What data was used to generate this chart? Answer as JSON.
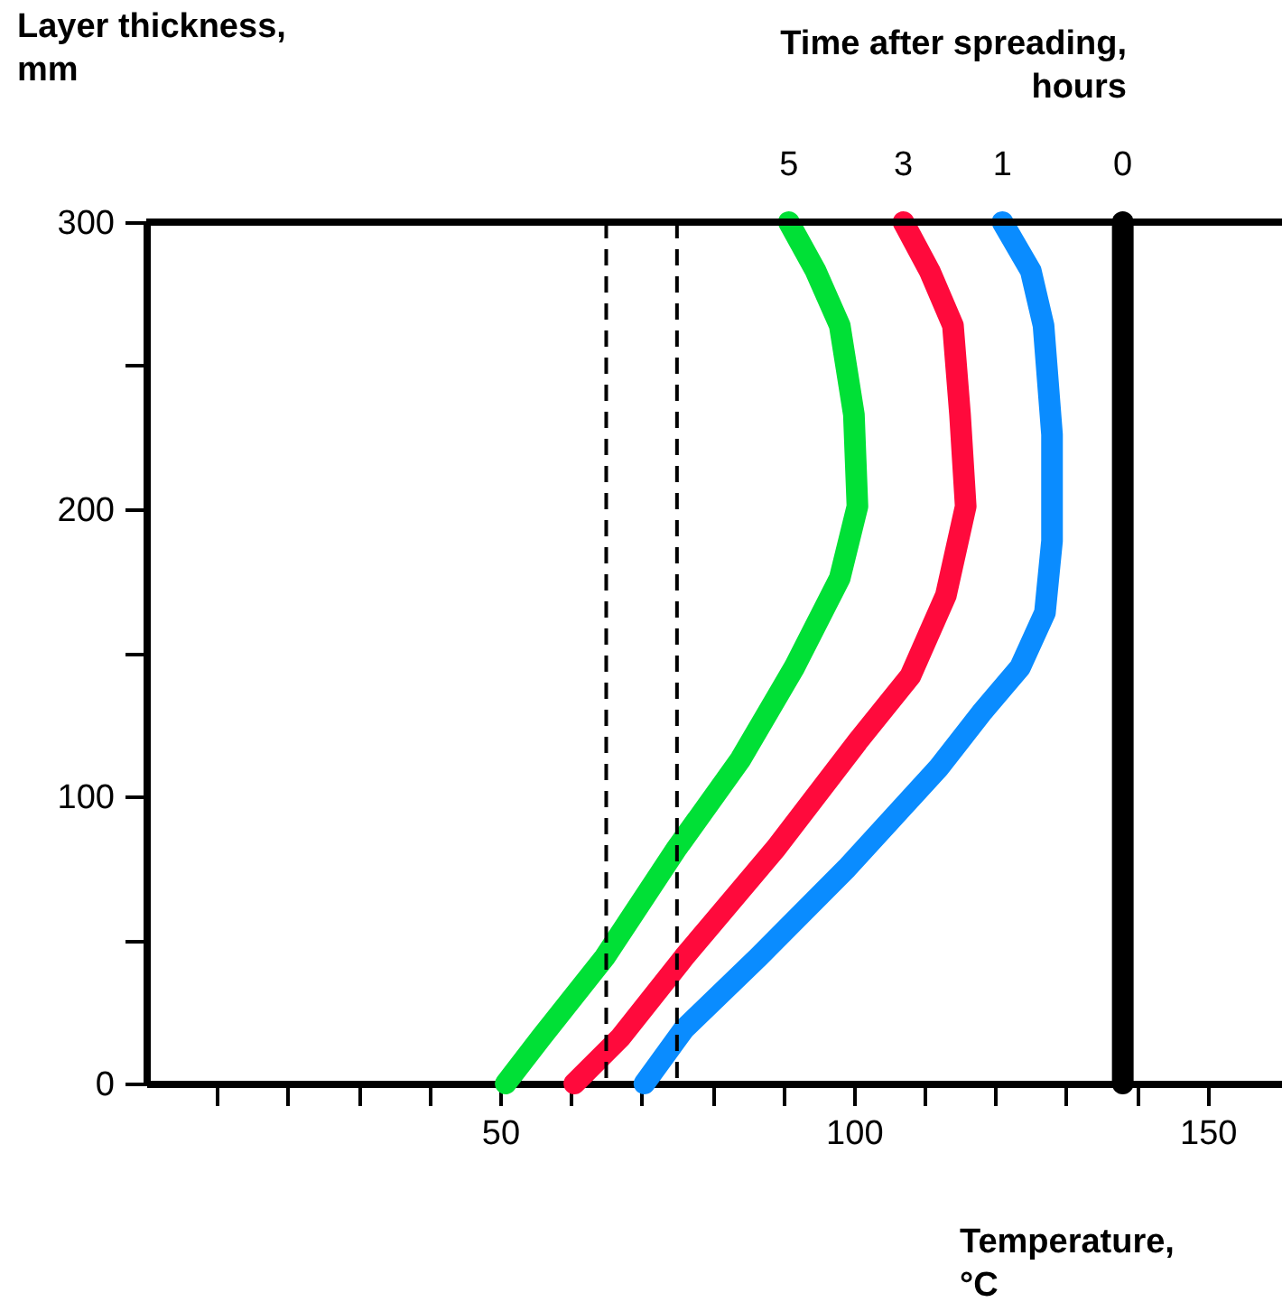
{
  "chart_data": {
    "type": "line",
    "ylabel": "Layer thickness, mm",
    "xlabel": "Temperature, °C",
    "legend_title": "Time after spreading, hours",
    "series": [
      {
        "name": "5",
        "color": "#00e036",
        "x": [
          50.8,
          55.8,
          64.8,
          75,
          84,
          91.6,
          98,
          100.5,
          100,
          98,
          94.6,
          90.8
        ],
        "values": [
          0,
          16,
          44,
          82,
          113,
          145,
          176,
          201,
          233,
          264,
          283,
          300
        ]
      },
      {
        "name": "3",
        "color": "#ff0a3c",
        "x": [
          60.5,
          67,
          76,
          89,
          100.5,
          108,
          113,
          115.8,
          115,
          114,
          110.7,
          107
        ],
        "values": [
          0,
          16,
          44,
          82,
          119,
          142,
          170,
          201,
          233,
          264,
          283,
          300
        ]
      },
      {
        "name": "1",
        "color": "#0a8cff",
        "x": [
          70.4,
          76,
          86.5,
          99,
          112,
          118,
          123.5,
          127,
          128,
          128,
          126.8,
          125,
          121
        ],
        "values": [
          0,
          19,
          44,
          75,
          110,
          129,
          145,
          164,
          189,
          226,
          264,
          283,
          300
        ]
      },
      {
        "name": "0",
        "color": "#000000",
        "x": [
          138,
          138
        ],
        "values": [
          0,
          300
        ]
      }
    ],
    "xlim": [
      0,
      160.5
    ],
    "xticks": [
      {
        "value": 10,
        "label": null
      },
      {
        "value": 20,
        "label": null
      },
      {
        "value": 30,
        "label": null
      },
      {
        "value": 40,
        "label": null
      },
      50,
      {
        "value": 60,
        "label": null
      },
      {
        "value": 70,
        "label": null
      },
      {
        "value": 80,
        "label": null
      },
      {
        "value": 90,
        "label": null
      },
      100,
      {
        "value": 110,
        "label": null
      },
      {
        "value": 120,
        "label": null
      },
      {
        "value": 130,
        "label": null
      },
      {
        "value": 140,
        "label": null
      },
      150
    ],
    "ylim": [
      0,
      300
    ],
    "yticks": [
      0,
      {
        "value": 50,
        "label": null
      },
      100,
      {
        "value": 150,
        "label": null
      },
      200,
      {
        "value": 250,
        "label": null
      },
      300
    ],
    "ref_lines": [
      {
        "axis": "x",
        "value": 65,
        "line_style": "dashed"
      },
      {
        "axis": "x",
        "value": 75,
        "line_style": "dashed"
      },
      {
        "axis": "y",
        "value": 300,
        "line_style": "solid"
      }
    ],
    "legend": false,
    "grid": false,
    "line_style": "solid"
  }
}
